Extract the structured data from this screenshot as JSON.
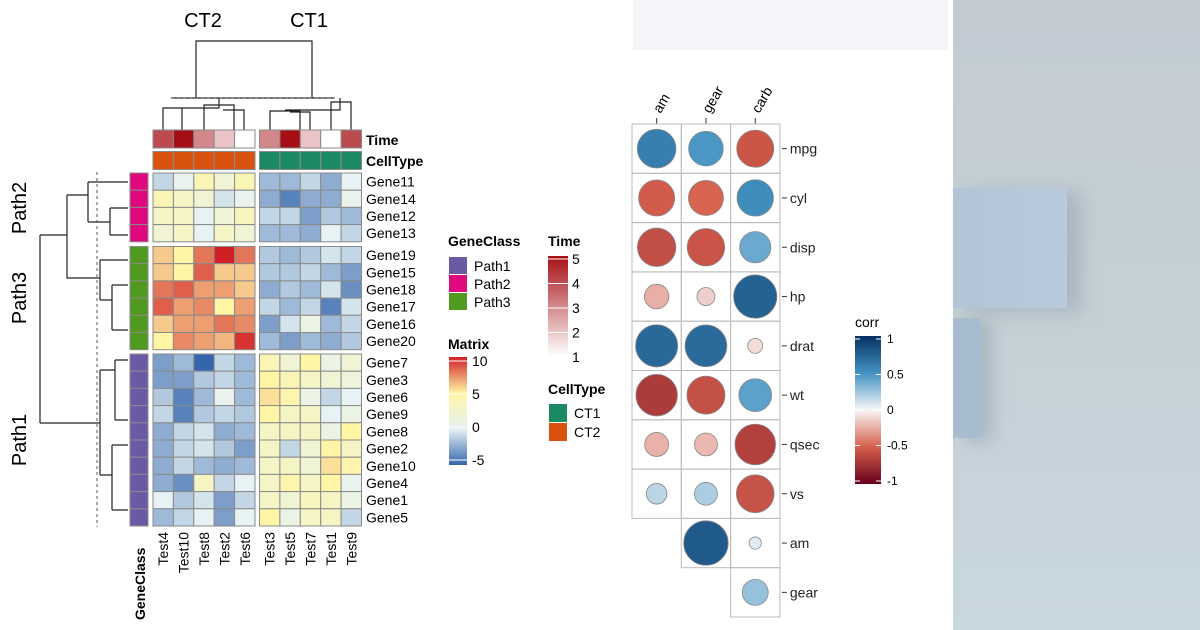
{
  "chart_data": [
    {
      "type": "heatmap",
      "column_split_labels": [
        "CT2",
        "CT1"
      ],
      "row_split_labels": [
        "Path2",
        "Path3",
        "Path1"
      ],
      "columns": {
        "CT2": [
          "Test4",
          "Test10",
          "Test8",
          "Test2",
          "Test6"
        ],
        "CT1": [
          "Test3",
          "Test5",
          "Test7",
          "Test1",
          "Test9"
        ]
      },
      "column_annotations": {
        "Time": {
          "label": "Time",
          "values": [
            4,
            5,
            3,
            2,
            1,
            3,
            5,
            2,
            1,
            4
          ]
        },
        "CellType": {
          "label": "CellType",
          "values": [
            "CT2",
            "CT2",
            "CT2",
            "CT2",
            "CT2",
            "CT1",
            "CT1",
            "CT1",
            "CT1",
            "CT1"
          ]
        }
      },
      "row_annotation_label": "GeneClass",
      "rows": [
        {
          "gene": "Gene11",
          "class": "Path2",
          "values": [
            -1,
            0.5,
            4,
            2,
            4,
            -2,
            -2,
            -1,
            -2.5,
            0
          ]
        },
        {
          "gene": "Gene14",
          "class": "Path2",
          "values": [
            4,
            3,
            2,
            -0.5,
            0.5,
            -2.5,
            -4,
            -2.5,
            -2.5,
            0.5
          ]
        },
        {
          "gene": "Gene12",
          "class": "Path2",
          "values": [
            3,
            3,
            0,
            2,
            3.5,
            -1,
            -1,
            -3,
            -1.5,
            -2
          ]
        },
        {
          "gene": "Gene13",
          "class": "Path2",
          "values": [
            2,
            3,
            0,
            3,
            2,
            -2,
            -2,
            -2.5,
            0,
            -1
          ]
        },
        {
          "gene": "Gene19",
          "class": "Path3",
          "values": [
            6,
            5,
            8,
            10,
            8,
            -1.5,
            -2,
            -1.5,
            -0.5,
            -1
          ]
        },
        {
          "gene": "Gene15",
          "class": "Path3",
          "values": [
            6,
            5,
            8.5,
            6,
            6,
            -1.5,
            -1.5,
            -1,
            -2,
            -3
          ]
        },
        {
          "gene": "Gene18",
          "class": "Path3",
          "values": [
            8,
            8.5,
            7,
            7,
            6,
            -2.5,
            -1.5,
            -2,
            -0.5,
            -3.5
          ]
        },
        {
          "gene": "Gene17",
          "class": "Path3",
          "values": [
            8.5,
            7,
            7.5,
            5,
            7,
            -1,
            -2,
            -1,
            -4,
            -0.5
          ]
        },
        {
          "gene": "Gene16",
          "class": "Path3",
          "values": [
            6,
            7,
            7,
            8,
            7.5,
            -3,
            -0.5,
            1,
            -2,
            -1
          ]
        },
        {
          "gene": "Gene20",
          "class": "Path3",
          "values": [
            5,
            7.5,
            7,
            6.5,
            9.5,
            -2,
            -3,
            -2,
            -2.5,
            -1.5
          ]
        },
        {
          "gene": "Gene7",
          "class": "Path1",
          "values": [
            -3,
            -2,
            -5,
            -1,
            -2,
            4,
            2,
            5,
            1,
            2
          ]
        },
        {
          "gene": "Gene3",
          "class": "Path1",
          "values": [
            -3,
            -3,
            -1.5,
            -1,
            -2,
            5,
            4,
            3,
            2,
            1.5
          ]
        },
        {
          "gene": "Gene6",
          "class": "Path1",
          "values": [
            -1.5,
            -4,
            -2,
            0.5,
            -2,
            5.5,
            4.5,
            1,
            -1,
            0
          ]
        },
        {
          "gene": "Gene9",
          "class": "Path1",
          "values": [
            -1,
            -4,
            -1.5,
            -1,
            -1.5,
            5,
            3,
            3,
            0,
            1
          ]
        },
        {
          "gene": "Gene8",
          "class": "Path1",
          "values": [
            -2.5,
            -1,
            -0.5,
            -2.5,
            -2,
            3,
            3,
            3,
            1,
            5
          ]
        },
        {
          "gene": "Gene2",
          "class": "Path1",
          "values": [
            -2.5,
            -1,
            -0.5,
            -1.5,
            -3,
            3,
            -1,
            2,
            5,
            3
          ]
        },
        {
          "gene": "Gene10",
          "class": "Path1",
          "values": [
            -2.5,
            -1,
            -2,
            -2.5,
            -2,
            3,
            3,
            2,
            5.5,
            4.5
          ]
        },
        {
          "gene": "Gene4",
          "class": "Path1",
          "values": [
            -2.5,
            -3.5,
            3,
            -1,
            0,
            3,
            4.5,
            3,
            5,
            0.5
          ]
        },
        {
          "gene": "Gene1",
          "class": "Path1",
          "values": [
            0,
            -1.5,
            -0.5,
            -3,
            -1,
            3,
            2,
            3.5,
            3,
            1
          ]
        },
        {
          "gene": "Gene5",
          "class": "Path1",
          "values": [
            -2,
            -1,
            0,
            -3,
            0,
            5,
            1,
            3,
            3,
            -1
          ]
        }
      ],
      "legends": {
        "GeneClass": {
          "title": "GeneClass",
          "items": [
            {
              "label": "Path1",
              "color": "#6a5aa6"
            },
            {
              "label": "Path2",
              "color": "#e0087d"
            },
            {
              "label": "Path3",
              "color": "#4f9a1f"
            }
          ]
        },
        "Matrix": {
          "title": "Matrix",
          "ticks": [
            "10",
            "5",
            "0",
            "-5"
          ],
          "range": [
            -5,
            10
          ],
          "colors": [
            "#3566ad",
            "#e6f2f4",
            "#fff5a5",
            "#d11f26"
          ]
        },
        "Time": {
          "title": "Time",
          "ticks": [
            "5",
            "4",
            "3",
            "2",
            "1"
          ],
          "range": [
            1,
            5
          ],
          "colors": [
            "#ffffff",
            "#a50f15"
          ]
        },
        "CellType": {
          "title": "CellType",
          "items": [
            {
              "label": "CT1",
              "color": "#1b8a63"
            },
            {
              "label": "CT2",
              "color": "#d9530f"
            }
          ]
        }
      }
    },
    {
      "type": "scatter",
      "subtype": "correlation-circle-matrix",
      "columns": [
        "am",
        "gear",
        "carb"
      ],
      "rows": [
        "mpg",
        "cyl",
        "disp",
        "hp",
        "drat",
        "wt",
        "qsec",
        "vs",
        "am",
        "gear"
      ],
      "values": [
        [
          0.6,
          0.48,
          -0.55
        ],
        [
          -0.52,
          -0.49,
          0.53
        ],
        [
          -0.59,
          -0.56,
          0.39
        ],
        [
          -0.24,
          -0.13,
          0.75
        ],
        [
          0.71,
          0.7,
          -0.09
        ],
        [
          -0.69,
          -0.58,
          0.43
        ],
        [
          -0.23,
          -0.21,
          -0.66
        ],
        [
          0.17,
          0.21,
          -0.57
        ],
        [
          null,
          0.79,
          0.06
        ],
        [
          null,
          null,
          0.27
        ]
      ],
      "legend": {
        "title": "corr",
        "ticks": [
          "1",
          "0.5",
          "0",
          "-0.5",
          "-1"
        ],
        "range": [
          -1,
          1
        ],
        "colors": [
          "#67001f",
          "#d6604d",
          "#f7f7f7",
          "#4393c3",
          "#053061"
        ]
      }
    }
  ]
}
